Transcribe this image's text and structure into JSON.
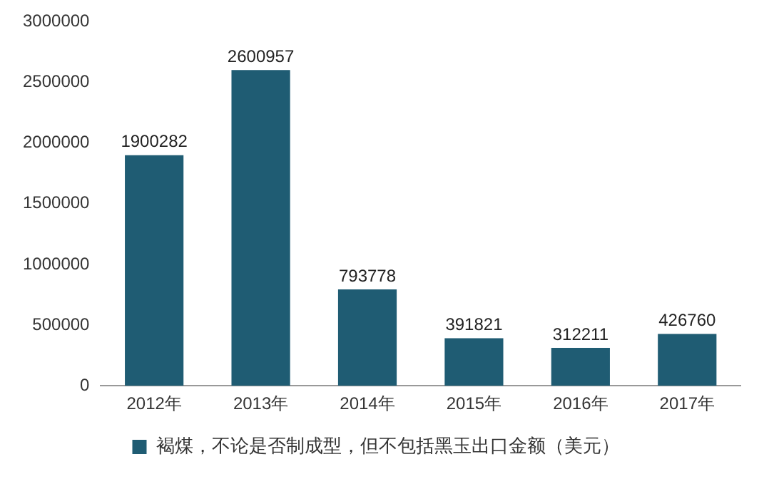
{
  "chart_data": {
    "type": "bar",
    "categories": [
      "2012年",
      "2013年",
      "2014年",
      "2015年",
      "2016年",
      "2017年"
    ],
    "series": [
      {
        "name": "褐煤，不论是否制成型，但不包括黑玉出口金额（美元）",
        "color": "#1f5c73",
        "values": [
          1900282,
          2600957,
          793778,
          391821,
          312211,
          426760
        ]
      }
    ],
    "ylim": [
      0,
      3000000
    ],
    "yticks": [
      0,
      500000,
      1000000,
      1500000,
      2000000,
      2500000,
      3000000
    ],
    "grid": false,
    "legend": "bottom",
    "data_labels": true
  }
}
